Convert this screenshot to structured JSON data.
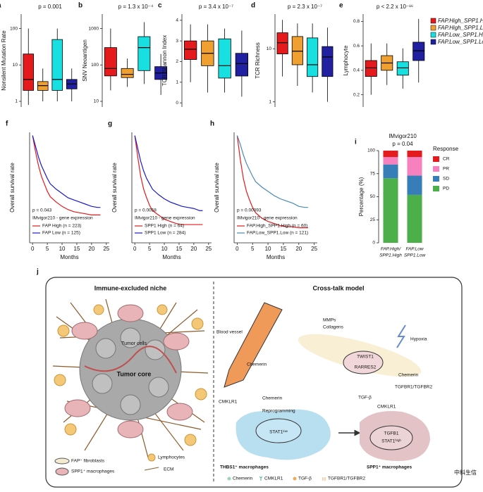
{
  "chart_data": [
    {
      "type": "box",
      "label": "a",
      "subtitle": "p = 0.001",
      "ylabel": "Nonsilent Mutation Rate",
      "log": true,
      "ylim": [
        0.7,
        250
      ],
      "yticks": [
        1,
        10,
        100
      ],
      "boxes": [
        {
          "color": "#e41a1c",
          "lo": 0.8,
          "q1": 2,
          "med": 4,
          "q3": 20,
          "hi": 100
        },
        {
          "color": "#f0a030",
          "lo": 1,
          "q1": 2,
          "med": 2.7,
          "q3": 3.5,
          "hi": 8
        },
        {
          "color": "#19e0e0",
          "lo": 1,
          "q1": 2,
          "med": 4,
          "q3": 50,
          "hi": 100
        },
        {
          "color": "#2020a0",
          "lo": 1,
          "q1": 2.2,
          "med": 3,
          "q3": 4,
          "hi": 8
        }
      ]
    },
    {
      "type": "box",
      "label": "b",
      "subtitle": "p = 1.3 x 10⁻⁴",
      "ylabel": "SNV Neoantigen",
      "log": true,
      "ylim": [
        7,
        2500
      ],
      "yticks": [
        10,
        100,
        1000
      ],
      "boxes": [
        {
          "color": "#e41a1c",
          "lo": 20,
          "q1": 50,
          "med": 80,
          "q3": 300,
          "hi": 1000
        },
        {
          "color": "#f0a030",
          "lo": 25,
          "q1": 45,
          "med": 55,
          "q3": 80,
          "hi": 150
        },
        {
          "color": "#19e0e0",
          "lo": 30,
          "q1": 70,
          "med": 300,
          "q3": 600,
          "hi": 1500
        },
        {
          "color": "#2020a0",
          "lo": 15,
          "q1": 40,
          "med": 60,
          "q3": 90,
          "hi": 200
        }
      ]
    },
    {
      "type": "box",
      "label": "c",
      "subtitle": "p = 3.4 x 10⁻⁷",
      "ylabel": "TCR Shannon Index",
      "log": false,
      "ylim": [
        -0.2,
        4.3
      ],
      "yticks": [
        0,
        1,
        2,
        3,
        4
      ],
      "boxes": [
        {
          "color": "#e41a1c",
          "lo": 1.0,
          "q1": 2.1,
          "med": 2.6,
          "q3": 3.0,
          "hi": 3.8
        },
        {
          "color": "#f0a030",
          "lo": 0.5,
          "q1": 1.8,
          "med": 2.4,
          "q3": 3.0,
          "hi": 3.8
        },
        {
          "color": "#19e0e0",
          "lo": 0.5,
          "q1": 1.2,
          "med": 1.8,
          "q3": 3.1,
          "hi": 3.6
        },
        {
          "color": "#2020a0",
          "lo": 0.3,
          "q1": 1.3,
          "med": 1.9,
          "q3": 2.4,
          "hi": 3.5
        }
      ]
    },
    {
      "type": "box",
      "label": "d",
      "subtitle": "p = 2.3 x 10⁻⁷",
      "ylabel": "TCR Richness",
      "log": true,
      "ylim": [
        0.8,
        45
      ],
      "yticks": [
        1,
        10
      ],
      "boxes": [
        {
          "color": "#e41a1c",
          "lo": 3,
          "q1": 8,
          "med": 13,
          "q3": 20,
          "hi": 35
        },
        {
          "color": "#f0a030",
          "lo": 2,
          "q1": 5,
          "med": 9,
          "q3": 17,
          "hi": 30
        },
        {
          "color": "#19e0e0",
          "lo": 1.5,
          "q1": 3,
          "med": 5,
          "q3": 16,
          "hi": 30
        },
        {
          "color": "#2020a0",
          "lo": 1,
          "q1": 3,
          "med": 7,
          "q3": 11,
          "hi": 25
        }
      ]
    },
    {
      "type": "box",
      "label": "e",
      "subtitle": "p < 2.2 x 10⁻¹⁶",
      "ylabel": "Lymphocyte",
      "log": false,
      "ylim": [
        0.1,
        0.86
      ],
      "yticks": [
        0.2,
        0.4,
        0.6,
        0.8
      ],
      "legend": [
        "FAP.High_SPP1.High",
        "FAP.High_SPP1.Low",
        "FAP.Low_SPP1.High",
        "FAP.Low_SPP1.Low"
      ],
      "boxes": [
        {
          "color": "#e41a1c",
          "lo": 0.2,
          "q1": 0.35,
          "med": 0.42,
          "q3": 0.48,
          "hi": 0.62
        },
        {
          "color": "#f0a030",
          "lo": 0.28,
          "q1": 0.4,
          "med": 0.46,
          "q3": 0.52,
          "hi": 0.62
        },
        {
          "color": "#19e0e0",
          "lo": 0.25,
          "q1": 0.36,
          "med": 0.42,
          "q3": 0.47,
          "hi": 0.58
        },
        {
          "color": "#2020a0",
          "lo": 0.3,
          "q1": 0.48,
          "med": 0.56,
          "q3": 0.63,
          "hi": 0.82
        }
      ]
    },
    {
      "type": "line",
      "label": "f",
      "annotation": "p = 0.043",
      "subtitle": "IMvigor210 - gene expression",
      "xlabel": "Months",
      "ylabel": "Overall survival rate",
      "x": [
        0,
        1,
        2,
        3,
        4,
        5,
        6,
        8,
        10,
        12,
        14,
        16,
        18,
        20,
        22,
        23
      ],
      "xlim": [
        -1,
        26
      ],
      "xticks": [
        0,
        5,
        10,
        15,
        20,
        25
      ],
      "ylim": [
        0,
        1.03
      ],
      "series": [
        {
          "name": "FAP High (n = 223)",
          "color": "#e41a1c",
          "values": [
            1,
            0.85,
            0.72,
            0.62,
            0.55,
            0.48,
            0.43,
            0.38,
            0.34,
            0.31,
            0.29,
            0.28,
            0.27,
            0.26,
            0.26,
            0.26
          ]
        },
        {
          "name": "FAP Low (n = 125)",
          "color": "#1a1acc",
          "values": [
            1,
            0.9,
            0.8,
            0.72,
            0.66,
            0.6,
            0.55,
            0.5,
            0.46,
            0.42,
            0.4,
            0.38,
            0.36,
            0.34,
            0.33,
            0.33
          ]
        }
      ]
    },
    {
      "type": "line",
      "label": "g",
      "annotation": "p = 0.0058",
      "subtitle": "IMvigor210 - gene expression",
      "xlabel": "Months",
      "ylabel": "Overall survival rate",
      "x": [
        0,
        1,
        2,
        3,
        4,
        5,
        6,
        8,
        10,
        12,
        14,
        16,
        18,
        20,
        22,
        23
      ],
      "xlim": [
        -1,
        26
      ],
      "xticks": [
        0,
        5,
        10,
        15,
        20,
        25
      ],
      "ylim": [
        0,
        1.03
      ],
      "series": [
        {
          "name": "SPP1 High (n = 64)",
          "color": "#e41a1c",
          "values": [
            1,
            0.8,
            0.62,
            0.5,
            0.42,
            0.35,
            0.3,
            0.26,
            0.22,
            0.2,
            0.18,
            0.17,
            0.17,
            0.17,
            0.17,
            0.17
          ]
        },
        {
          "name": "SPP1 Low (n = 284)",
          "color": "#1a1acc",
          "values": [
            1,
            0.88,
            0.76,
            0.67,
            0.6,
            0.55,
            0.5,
            0.45,
            0.41,
            0.38,
            0.36,
            0.34,
            0.33,
            0.32,
            0.3,
            0.3
          ]
        }
      ]
    },
    {
      "type": "line",
      "label": "h",
      "annotation": "p = 0.00093",
      "subtitle": "IMvigor210 - gene expression",
      "xlabel": "Months",
      "ylabel": "Overall survival rate",
      "x": [
        0,
        1,
        2,
        3,
        4,
        5,
        6,
        8,
        10,
        12,
        14,
        16,
        18,
        20,
        22,
        23
      ],
      "xlim": [
        -1,
        26
      ],
      "xticks": [
        0,
        5,
        10,
        15,
        20,
        25
      ],
      "ylim": [
        0,
        1.03
      ],
      "series": [
        {
          "name": "FAP.High_SPP1.High (n = 60)",
          "color": "#e41a1c",
          "values": [
            1,
            0.78,
            0.6,
            0.48,
            0.4,
            0.33,
            0.28,
            0.23,
            0.2,
            0.18,
            0.16,
            0.15,
            0.15,
            0.14,
            0.14,
            0.14
          ]
        },
        {
          "name": "FAP.Low_SPP1.Low (n = 121)",
          "color": "#4a8ab8",
          "values": [
            1,
            0.92,
            0.82,
            0.74,
            0.68,
            0.62,
            0.57,
            0.52,
            0.48,
            0.44,
            0.41,
            0.39,
            0.37,
            0.34,
            0.33,
            0.33
          ]
        }
      ]
    },
    {
      "type": "stacked_bar",
      "label": "i",
      "title": "IMvigor210",
      "subtitle": "p = 0.04",
      "ylabel": "Percentage (%)",
      "legend_title": "Response",
      "categories": [
        [
          "FAP.High/",
          "SPP1.High"
        ],
        [
          "FAP.Low",
          "SPP1.Low"
        ]
      ],
      "ylim": [
        0,
        100
      ],
      "yticks": [
        0,
        25,
        50,
        75,
        100
      ],
      "series": [
        {
          "name": "PD",
          "color": "#4daf4a",
          "values": [
            70,
            52
          ]
        },
        {
          "name": "SD",
          "color": "#377eb8",
          "values": [
            15,
            21
          ]
        },
        {
          "name": "PR",
          "color": "#f781bf",
          "values": [
            8,
            20
          ]
        },
        {
          "name": "CR",
          "color": "#e41a1c",
          "values": [
            7,
            7
          ]
        }
      ]
    }
  ],
  "diagram": {
    "label": "j",
    "left_title": "Immune-excluded niche",
    "right_title": "Cross-talk model",
    "left_labels": [
      "Tumor cells",
      "Tumor core"
    ],
    "left_legend": [
      "FAP⁺ fibroblasts",
      "SPP1⁺ macrophages",
      "Lymphocytes",
      "ECM"
    ],
    "right_labels": [
      "Blood vessel",
      "MMPs",
      "Collagens",
      "Hypoxia",
      "TWIST1",
      "RARRES2",
      "Chemerin",
      "TGFBR1/TGFBR2",
      "TGF-β",
      "CMKLR1",
      "Chemerin",
      "Chemerin",
      "CMKLR1",
      "Reprogramming",
      "STAT1ˡᵒʷ",
      "THBS1⁺ macrophages",
      "TGFB1",
      "STAT1ʰⁱᵍʰ",
      "SPP1⁺ macrophages"
    ],
    "bottom_legend": [
      "Chemerin",
      "CMKLR1",
      "TGF-β",
      "TGFBR1/TGFBR2"
    ],
    "watermark": "中科生信"
  }
}
